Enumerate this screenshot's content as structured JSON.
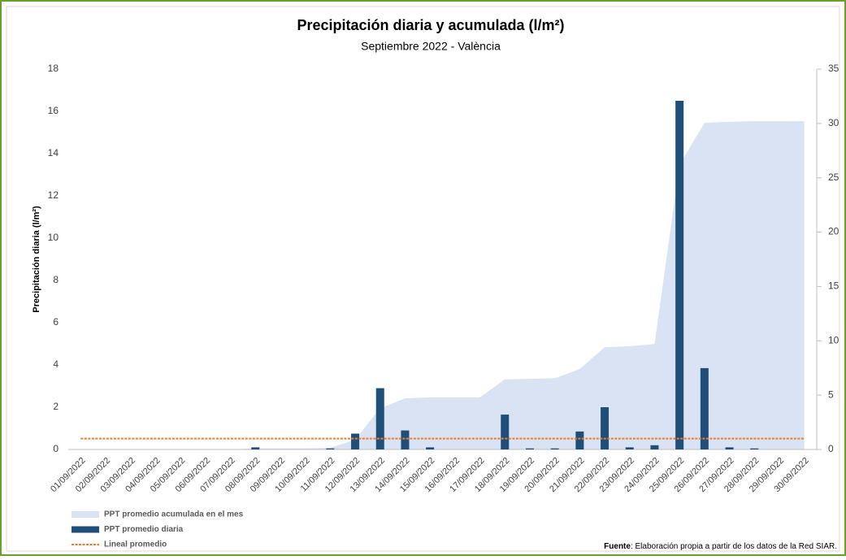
{
  "chart_data": {
    "type": "bar",
    "title": "Precipitación diaria y acumulada (l/m²)",
    "subtitle": "Septiembre 2022 - València",
    "y_label": "Precipitación diaria (l/m²)",
    "source_label": "Fuente",
    "source_text": ": Elaboración propia a partir de los datos de la Red SIAR.",
    "categories": [
      "01/09/2022",
      "02/09/2022",
      "03/09/2022",
      "04/09/2022",
      "05/09/2022",
      "06/09/2022",
      "07/09/2022",
      "08/09/2022",
      "09/09/2022",
      "10/09/2022",
      "11/09/2022",
      "12/09/2022",
      "13/09/2022",
      "14/09/2022",
      "15/09/2022",
      "16/09/2022",
      "17/09/2022",
      "18/09/2022",
      "19/09/2022",
      "20/09/2022",
      "21/09/2022",
      "22/09/2022",
      "23/09/2022",
      "24/09/2022",
      "25/09/2022",
      "26/09/2022",
      "27/09/2022",
      "28/09/2022",
      "29/09/2022",
      "30/09/2022"
    ],
    "series": [
      {
        "name": "PPT promedio acumulada en el mes",
        "type": "area",
        "axis": "y2",
        "color": "#dae3f3",
        "values": [
          0,
          0,
          0,
          0,
          0,
          0,
          0,
          0.1,
          0.1,
          0.1,
          0.15,
          0.9,
          3.8,
          4.7,
          4.8,
          4.8,
          4.8,
          6.45,
          6.5,
          6.55,
          7.4,
          9.4,
          9.5,
          9.7,
          26.2,
          30.05,
          30.15,
          30.2,
          30.2,
          30.2
        ]
      },
      {
        "name": "PPT promedio diaria",
        "type": "bar",
        "color": "#1f4e79",
        "values": [
          0,
          0,
          0,
          0,
          0,
          0,
          0,
          0.1,
          0,
          0,
          0.05,
          0.75,
          2.9,
          0.9,
          0.1,
          0,
          0,
          1.65,
          0.05,
          0.05,
          0.85,
          2.0,
          0.1,
          0.2,
          16.5,
          3.85,
          0.1,
          0.05,
          0,
          0
        ]
      },
      {
        "name": "Lineal promedio",
        "type": "line",
        "axis": "y2",
        "color": "#ed7d31",
        "values": [
          1,
          1,
          1,
          1,
          1,
          1,
          1,
          1,
          1,
          1,
          1,
          1,
          1,
          1,
          1,
          1,
          1,
          1,
          1,
          1,
          1,
          1,
          1,
          1,
          1,
          1,
          1,
          1,
          1,
          1
        ]
      }
    ],
    "ylim": [
      0,
      18
    ],
    "yticks": [
      0,
      2,
      4,
      6,
      8,
      10,
      12,
      14,
      16,
      18
    ],
    "y2lim": [
      0,
      35
    ],
    "y2ticks": [
      0,
      5,
      10,
      15,
      20,
      25,
      30,
      35
    ]
  }
}
